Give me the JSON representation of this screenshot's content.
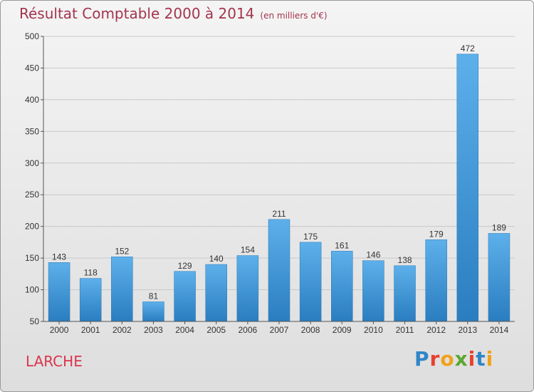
{
  "chart_data": {
    "type": "bar",
    "title": "Résultat Comptable 2000 à 2014",
    "subtitle": "(en milliers d'€)",
    "categories": [
      "2000",
      "2001",
      "2002",
      "2003",
      "2004",
      "2005",
      "2006",
      "2007",
      "2008",
      "2009",
      "2010",
      "2011",
      "2012",
      "2013",
      "2014"
    ],
    "values": [
      143,
      118,
      152,
      81,
      129,
      140,
      154,
      211,
      175,
      161,
      146,
      138,
      179,
      472,
      189
    ],
    "ylim": [
      50,
      500
    ],
    "yticks": [
      50,
      100,
      150,
      200,
      250,
      300,
      350,
      400,
      450,
      500
    ],
    "grid": true,
    "bar_color": "#3a93d6"
  },
  "commune": "LARCHE",
  "logo": "Proxiti"
}
